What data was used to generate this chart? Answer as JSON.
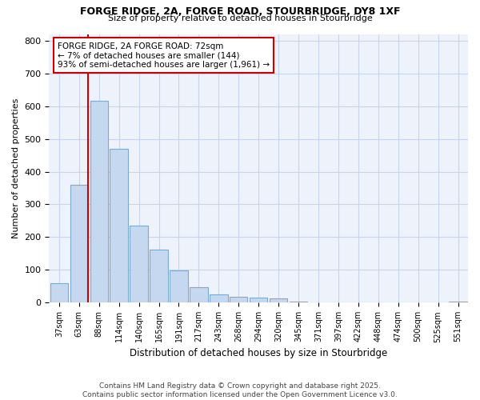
{
  "title1": "FORGE RIDGE, 2A, FORGE ROAD, STOURBRIDGE, DY8 1XF",
  "title2": "Size of property relative to detached houses in Stourbridge",
  "xlabel": "Distribution of detached houses by size in Stourbridge",
  "ylabel": "Number of detached properties",
  "bar_labels": [
    "37sqm",
    "63sqm",
    "88sqm",
    "114sqm",
    "140sqm",
    "165sqm",
    "191sqm",
    "217sqm",
    "243sqm",
    "268sqm",
    "294sqm",
    "320sqm",
    "345sqm",
    "371sqm",
    "397sqm",
    "422sqm",
    "448sqm",
    "474sqm",
    "500sqm",
    "525sqm",
    "551sqm"
  ],
  "bar_values": [
    60,
    360,
    615,
    470,
    235,
    162,
    98,
    48,
    25,
    19,
    15,
    12,
    3,
    2,
    1,
    1,
    1,
    1,
    1,
    1,
    3
  ],
  "bar_color": "#c5d8f0",
  "bar_edge_color": "#7aaad0",
  "vline_color": "#cc0000",
  "annotation_text": "FORGE RIDGE, 2A FORGE ROAD: 72sqm\n← 7% of detached houses are smaller (144)\n93% of semi-detached houses are larger (1,961) →",
  "annotation_box_color": "#ffffff",
  "annotation_box_edge": "#cc0000",
  "ylim": [
    0,
    820
  ],
  "yticks": [
    0,
    100,
    200,
    300,
    400,
    500,
    600,
    700,
    800
  ],
  "footer1": "Contains HM Land Registry data © Crown copyright and database right 2025.",
  "footer2": "Contains public sector information licensed under the Open Government Licence v3.0.",
  "bg_color": "#eef2fb",
  "grid_color": "#c8d4ec"
}
